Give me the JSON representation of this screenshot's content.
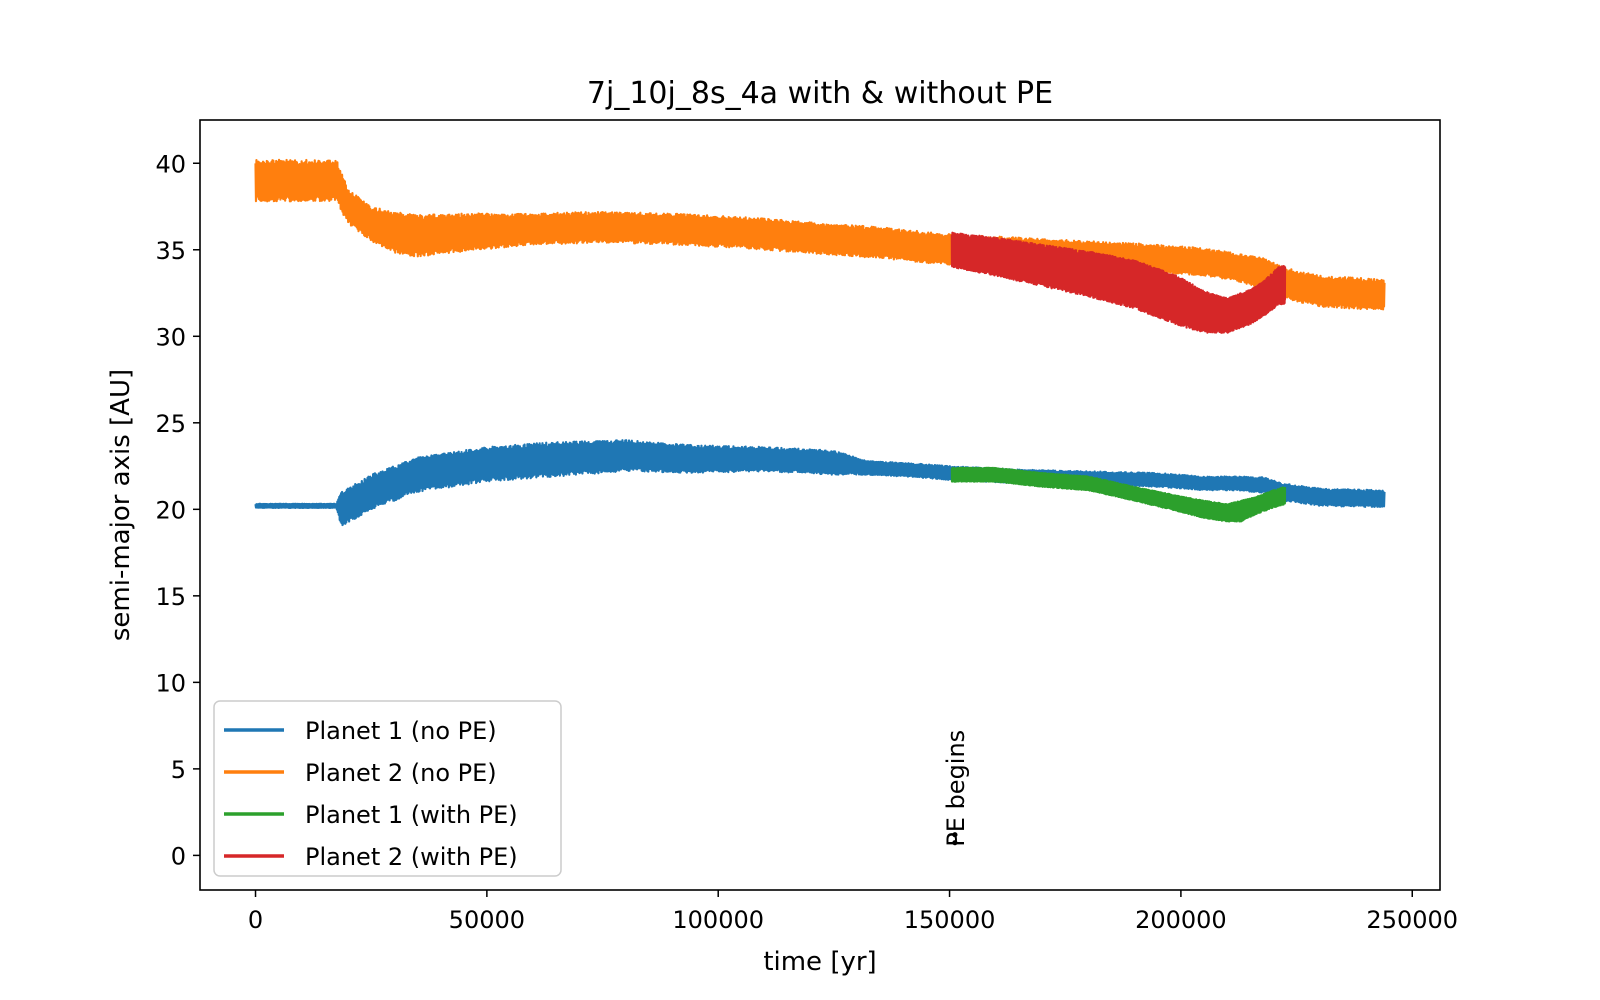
{
  "chart_data": {
    "type": "line",
    "title": "7j_10j_8s_4a with & without PE",
    "xlabel": "time [yr]",
    "ylabel": "semi-major axis [AU]",
    "xlim": [
      -12000,
      256000
    ],
    "ylim": [
      -2,
      42.5
    ],
    "xticks": [
      0,
      50000,
      100000,
      150000,
      200000,
      250000
    ],
    "yticks": [
      0,
      5,
      10,
      15,
      20,
      25,
      30,
      35,
      40
    ],
    "grid": false,
    "legend_position": "lower-left",
    "series": [
      {
        "name": "Planet 1 (no PE)",
        "color": "#1f77b4",
        "x": [
          0,
          17500,
          18500,
          25000,
          35000,
          50000,
          65000,
          80000,
          95000,
          110000,
          125000,
          132000,
          140000,
          150000,
          165000,
          180000,
          195000,
          205000,
          212000,
          218000,
          222000,
          230000,
          244000
        ],
        "mid": [
          20.2,
          20.2,
          20.0,
          21.0,
          22.0,
          22.6,
          22.9,
          23.1,
          22.9,
          22.9,
          22.7,
          22.4,
          22.3,
          22.1,
          21.9,
          21.8,
          21.7,
          21.5,
          21.5,
          21.4,
          21.0,
          20.7,
          20.6
        ],
        "amp": [
          0.12,
          0.12,
          1.0,
          1.0,
          1.0,
          1.0,
          1.0,
          0.9,
          0.8,
          0.7,
          0.7,
          0.4,
          0.4,
          0.4,
          0.4,
          0.4,
          0.4,
          0.4,
          0.4,
          0.45,
          0.5,
          0.5,
          0.5
        ]
      },
      {
        "name": "Planet 2 (no PE)",
        "color": "#ff7f0e",
        "x": [
          0,
          17500,
          20000,
          25000,
          30000,
          35000,
          45000,
          60000,
          75000,
          90000,
          105000,
          120000,
          135000,
          150000,
          165000,
          180000,
          195000,
          205000,
          212000,
          218000,
          222000,
          230000,
          244000
        ],
        "mid": [
          39.0,
          39.0,
          37.5,
          36.5,
          36.0,
          35.8,
          36.0,
          36.2,
          36.3,
          36.2,
          36.0,
          35.7,
          35.4,
          35.0,
          34.9,
          34.7,
          34.5,
          34.3,
          34.0,
          33.6,
          33.1,
          32.6,
          32.4
        ],
        "amp": [
          1.2,
          1.2,
          1.0,
          1.0,
          1.2,
          1.2,
          1.1,
          0.9,
          0.9,
          0.9,
          0.9,
          0.9,
          0.9,
          0.9,
          0.8,
          0.8,
          0.8,
          0.8,
          0.8,
          0.9,
          0.9,
          0.9,
          0.9
        ]
      },
      {
        "name": "Planet 1 (with PE)",
        "color": "#2ca02c",
        "x": [
          150500,
          160000,
          170000,
          180000,
          190000,
          200000,
          205000,
          210000,
          213000,
          216000,
          220000,
          222500
        ],
        "mid": [
          22.0,
          22.0,
          21.7,
          21.5,
          20.9,
          20.3,
          20.0,
          19.8,
          19.9,
          20.2,
          20.6,
          20.8
        ],
        "amp": [
          0.4,
          0.4,
          0.4,
          0.4,
          0.4,
          0.45,
          0.5,
          0.5,
          0.6,
          0.5,
          0.5,
          0.5
        ]
      },
      {
        "name": "Planet 2 (with PE)",
        "color": "#d62728",
        "x": [
          150500,
          160000,
          170000,
          180000,
          190000,
          200000,
          205000,
          210000,
          215000,
          218000,
          221000,
          222500
        ],
        "mid": [
          35.0,
          34.6,
          34.1,
          33.6,
          33.0,
          32.0,
          31.4,
          31.2,
          31.7,
          32.2,
          32.9,
          33.0
        ],
        "amp": [
          1.0,
          1.1,
          1.2,
          1.3,
          1.4,
          1.4,
          1.2,
          1.0,
          1.0,
          1.0,
          1.1,
          1.1
        ]
      }
    ],
    "annotations": [
      {
        "text": "PE begins",
        "x": 150500,
        "y": 0.5
      }
    ]
  }
}
